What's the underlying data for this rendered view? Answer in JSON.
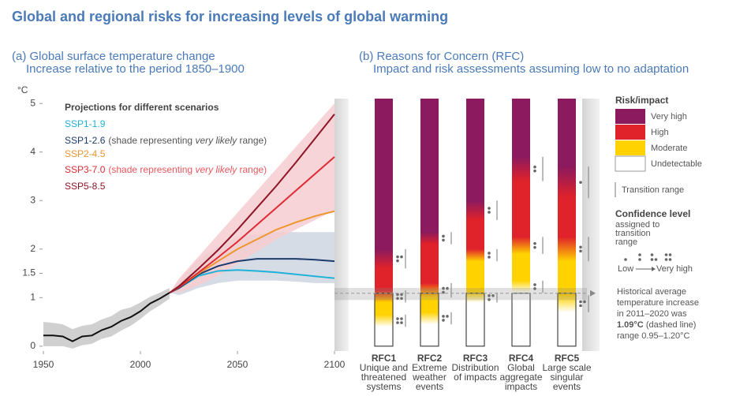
{
  "title": "Global and regional risks for increasing levels of global warming",
  "chart_data": [
    {
      "type": "line",
      "title": "(a) Global surface temperature change",
      "subtitle": "Increase relative to the period 1850–1900",
      "y_label": "°C",
      "xlim": [
        1950,
        2100
      ],
      "xticks": [
        1950,
        2000,
        2050,
        2100
      ],
      "ylim": [
        -0.1,
        5.1
      ],
      "yticks": [
        0,
        1,
        1.5,
        2,
        3,
        4,
        5
      ],
      "legend_title": "Projections for different scenarios",
      "series": [
        {
          "color": "#111111",
          "shade": "#c8c8c8",
          "x": [
            1950,
            1955,
            1960,
            1965,
            1970,
            1975,
            1980,
            1985,
            1990,
            1995,
            2000,
            2005,
            2010,
            2015
          ],
          "values": [
            0.22,
            0.22,
            0.2,
            0.1,
            0.2,
            0.22,
            0.33,
            0.4,
            0.52,
            0.6,
            0.72,
            0.88,
            0.98,
            1.1
          ],
          "lower": [
            0.0,
            0.0,
            0.0,
            -0.05,
            0.02,
            0.05,
            0.15,
            0.2,
            0.32,
            0.42,
            0.56,
            0.72,
            0.84,
            0.98
          ],
          "upper": [
            0.5,
            0.48,
            0.45,
            0.35,
            0.42,
            0.45,
            0.55,
            0.62,
            0.75,
            0.8,
            0.9,
            1.02,
            1.1,
            1.2
          ]
        },
        {
          "name": "SSP1-1.9",
          "color": "#1eb2d8",
          "x": [
            2015,
            2020,
            2030,
            2040,
            2050,
            2060,
            2070,
            2080,
            2090,
            2100
          ],
          "values": [
            1.1,
            1.2,
            1.45,
            1.55,
            1.57,
            1.55,
            1.52,
            1.48,
            1.44,
            1.4
          ]
        },
        {
          "name": "SSP1-2.6",
          "color": "#1d3c6e",
          "note": [
            "(shade representing ",
            "very likely",
            " range)"
          ],
          "note_color": "#555555",
          "shade": "#cfd6e0",
          "x": [
            2015,
            2020,
            2030,
            2040,
            2050,
            2060,
            2070,
            2080,
            2090,
            2100
          ],
          "values": [
            1.1,
            1.2,
            1.48,
            1.65,
            1.75,
            1.8,
            1.8,
            1.8,
            1.78,
            1.75
          ],
          "lower": [
            1.1,
            1.05,
            1.2,
            1.3,
            1.35,
            1.35,
            1.35,
            1.33,
            1.3,
            1.3
          ],
          "upper": [
            1.1,
            1.35,
            1.8,
            2.05,
            2.25,
            2.3,
            2.35,
            2.35,
            2.35,
            2.35
          ]
        },
        {
          "name": "SSP2-4.5",
          "color": "#ee9630",
          "x": [
            2015,
            2020,
            2030,
            2040,
            2050,
            2060,
            2070,
            2080,
            2090,
            2100
          ],
          "values": [
            1.1,
            1.22,
            1.5,
            1.75,
            2.0,
            2.2,
            2.4,
            2.55,
            2.68,
            2.78
          ]
        },
        {
          "name": "SSP3-7.0",
          "color": "#e02b35",
          "note": [
            "(shade representing ",
            "very likely",
            " range)"
          ],
          "note_color": "#e9565e",
          "shade": "#f6cdd0",
          "x": [
            2015,
            2020,
            2030,
            2040,
            2050,
            2060,
            2070,
            2080,
            2090,
            2100
          ],
          "values": [
            1.1,
            1.22,
            1.52,
            1.83,
            2.15,
            2.5,
            2.85,
            3.2,
            3.55,
            3.9
          ],
          "lower": [
            1.1,
            1.1,
            1.25,
            1.45,
            1.7,
            1.95,
            2.2,
            2.4,
            2.6,
            2.8
          ],
          "upper": [
            1.1,
            1.4,
            1.85,
            2.3,
            2.75,
            3.2,
            3.65,
            4.1,
            4.55,
            5.0
          ]
        },
        {
          "name": "SSP5-8.5",
          "color": "#8f1526",
          "x": [
            2015,
            2020,
            2030,
            2040,
            2050,
            2060,
            2070,
            2080,
            2090,
            2100
          ],
          "values": [
            1.1,
            1.24,
            1.6,
            1.98,
            2.4,
            2.85,
            3.3,
            3.78,
            4.28,
            4.78
          ]
        }
      ]
    },
    {
      "type": "ember",
      "title": "(b) Reasons for Concern (RFC)",
      "subtitle": "Impact and risk assessments assuming low to no adaptation",
      "ylim": [
        -0.1,
        5.1
      ],
      "legend_title": "Risk/impact",
      "levels": [
        {
          "name": "Very high",
          "color": "#8b1a5e"
        },
        {
          "name": "High",
          "color": "#e0222a"
        },
        {
          "name": "Moderate",
          "color": "#ffd200"
        },
        {
          "name": "Undetectable",
          "color": "#ffffff"
        }
      ],
      "transition_label": "Transition range",
      "confidence_title": "Confidence level",
      "confidence_subtitle": [
        "assigned to",
        "transition",
        "range"
      ],
      "confidence_low": "Low",
      "confidence_high": "Very high",
      "embers": [
        {
          "name": "RFC1",
          "description": [
            "Unique and",
            "threatened",
            "systems"
          ],
          "transitions": [
            {
              "range": [
                0.4,
                0.65
              ],
              "confidence": 4
            },
            {
              "range": [
                0.9,
                1.15
              ],
              "confidence": 4
            },
            {
              "range": [
                1.6,
                2.0
              ],
              "confidence": 3
            }
          ]
        },
        {
          "name": "RFC2",
          "description": [
            "Extreme",
            "weather",
            "events"
          ],
          "transitions": [
            {
              "range": [
                0.45,
                0.7
              ],
              "confidence": 3
            },
            {
              "range": [
                1.0,
                1.3
              ],
              "confidence": 3
            },
            {
              "range": [
                2.1,
                2.35
              ],
              "confidence": 2
            }
          ]
        },
        {
          "name": "RFC3",
          "description": [
            "Distribution",
            "of impacts"
          ],
          "transitions": [
            {
              "range": [
                0.9,
                1.1
              ],
              "confidence": 3
            },
            {
              "range": [
                1.75,
                2.0
              ],
              "confidence": 2
            },
            {
              "range": [
                2.6,
                3.0
              ],
              "confidence": 2
            }
          ]
        },
        {
          "name": "RFC4",
          "description": [
            "Global",
            "aggregate",
            "impacts"
          ],
          "transitions": [
            {
              "range": [
                1.1,
                1.35
              ],
              "confidence": 2
            },
            {
              "range": [
                1.9,
                2.25
              ],
              "confidence": 2
            },
            {
              "range": [
                3.4,
                3.9
              ],
              "confidence": 2
            }
          ]
        },
        {
          "name": "RFC5",
          "description": [
            "Large scale",
            "singular",
            "events"
          ],
          "transitions": [
            {
              "range": [
                0.7,
                1.05
              ],
              "confidence": 3
            },
            {
              "range": [
                1.75,
                2.25
              ],
              "confidence": 2
            },
            {
              "range": [
                3.05,
                3.7
              ],
              "confidence": 1
            }
          ]
        }
      ],
      "historical": {
        "value": 1.09,
        "range": [
          0.95,
          1.2
        ]
      },
      "annotation": {
        "lines": [
          "Historical average",
          "temperature increase",
          "in 2011–2020 was"
        ],
        "emphasis": "1.09°C",
        "emphasis_rest": " (dashed line)",
        "last": "range 0.95–1.20°C"
      }
    }
  ]
}
